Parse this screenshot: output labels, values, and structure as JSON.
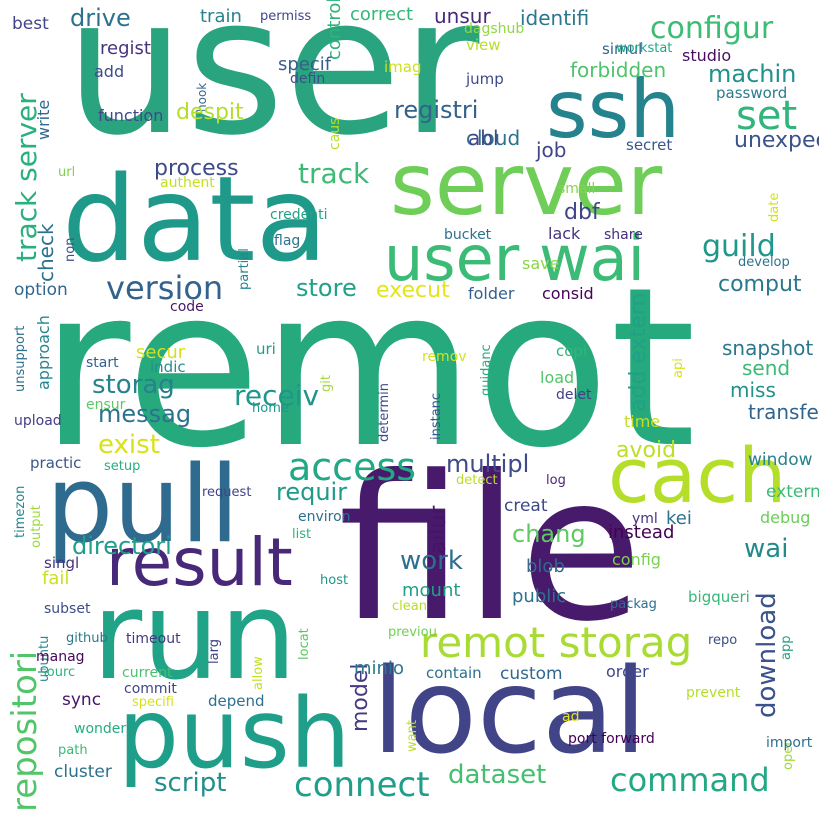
{
  "words": [
    {
      "text": "user",
      "color": "#2aa47f"
    },
    {
      "text": "remot",
      "color": "#26a97d"
    },
    {
      "text": "file",
      "color": "#481a6c"
    },
    {
      "text": "data",
      "color": "#1f9a8a"
    },
    {
      "text": "server",
      "color": "#6ece58"
    },
    {
      "text": "ssh",
      "color": "#25838e"
    },
    {
      "text": "pull",
      "color": "#2f6b8e"
    },
    {
      "text": "run",
      "color": "#20a386"
    },
    {
      "text": "local",
      "color": "#414487"
    },
    {
      "text": "push",
      "color": "#1f9e89"
    },
    {
      "text": "cach",
      "color": "#b5de2b"
    },
    {
      "text": "result",
      "color": "#482878"
    },
    {
      "text": "user wai",
      "color": "#3bbb75"
    },
    {
      "text": "remot storag",
      "color": "#a8db34"
    },
    {
      "text": "repositori",
      "color": "#52c569"
    },
    {
      "text": "access",
      "color": "#22a884"
    },
    {
      "text": "configur",
      "color": "#3dbc74"
    },
    {
      "text": "set",
      "color": "#31b57b"
    },
    {
      "text": "machin",
      "color": "#21918c"
    },
    {
      "text": "guild",
      "color": "#1f988b"
    },
    {
      "text": "version",
      "color": "#33638d"
    },
    {
      "text": "command",
      "color": "#22a884"
    },
    {
      "text": "connect",
      "color": "#1f9e89"
    },
    {
      "text": "directori",
      "color": "#1f9e89"
    },
    {
      "text": "multipl",
      "color": "#3e4a89"
    },
    {
      "text": "download",
      "color": "#3b528b"
    },
    {
      "text": "work",
      "color": "#2e6e8e"
    },
    {
      "text": "script",
      "color": "#21908d"
    },
    {
      "text": "storag",
      "color": "#26828e"
    },
    {
      "text": "track server",
      "color": "#2ab07f"
    },
    {
      "text": "track",
      "color": "#3bbb75"
    },
    {
      "text": "receiv",
      "color": "#1f968b"
    },
    {
      "text": "messag",
      "color": "#2c728e"
    },
    {
      "text": "dataset",
      "color": "#44bf70"
    },
    {
      "text": "exist",
      "color": "#d8e219"
    },
    {
      "text": "store",
      "color": "#1fa287"
    },
    {
      "text": "requir",
      "color": "#1f9a8a"
    },
    {
      "text": "chang",
      "color": "#5ec962"
    },
    {
      "text": "wai",
      "color": "#23898e"
    },
    {
      "text": "registri",
      "color": "#33638d"
    },
    {
      "text": "drive",
      "color": "#2c728e"
    },
    {
      "text": "process",
      "color": "#3e4a89"
    },
    {
      "text": "unexpect",
      "color": "#3b528b"
    },
    {
      "text": "check",
      "color": "#2c728e"
    },
    {
      "text": "comput",
      "color": "#29798e"
    },
    {
      "text": "execut",
      "color": "#e5e419"
    },
    {
      "text": "despit",
      "color": "#b5de2b"
    },
    {
      "text": "control",
      "color": "#2fb47c"
    },
    {
      "text": "forbidden",
      "color": "#4ec36b"
    },
    {
      "text": "job",
      "color": "#414487"
    },
    {
      "text": "unsur",
      "color": "#482878"
    },
    {
      "text": "identifi",
      "color": "#2a788e"
    },
    {
      "text": "correct",
      "color": "#35b779"
    },
    {
      "text": "train",
      "color": "#25848e"
    },
    {
      "text": "hook",
      "color": "#31688e"
    },
    {
      "text": "best",
      "color": "#404688"
    },
    {
      "text": "regist",
      "color": "#46327e"
    },
    {
      "text": "add",
      "color": "#3d4e8a"
    },
    {
      "text": "write",
      "color": "#306a8e"
    },
    {
      "text": "function",
      "color": "#3e4989"
    },
    {
      "text": "caus",
      "color": "#bddf26"
    },
    {
      "text": "specif",
      "color": "#355f8d"
    },
    {
      "text": "defin",
      "color": "#3c4f8a"
    },
    {
      "text": "abl",
      "color": "#3f4889"
    },
    {
      "text": "cloud",
      "color": "#2d708e"
    },
    {
      "text": "imag",
      "color": "#d0e11c"
    },
    {
      "text": "jump",
      "color": "#3e4c8a"
    },
    {
      "text": "view",
      "color": "#b8de29"
    },
    {
      "text": "dagshub",
      "color": "#90d743"
    },
    {
      "text": "permiss",
      "color": "#3f4788"
    },
    {
      "text": "workstat",
      "color": "#22a785"
    },
    {
      "text": "simul",
      "color": "#31668e"
    },
    {
      "text": "studio",
      "color": "#471063"
    },
    {
      "text": "password",
      "color": "#287d8e"
    },
    {
      "text": "secret",
      "color": "#39558c"
    },
    {
      "text": "authent",
      "color": "#c5e021"
    },
    {
      "text": "url",
      "color": "#7ad151"
    },
    {
      "text": "dbf",
      "color": "#414487"
    },
    {
      "text": "small",
      "color": "#84d44b"
    },
    {
      "text": "date",
      "color": "#d2e21b"
    },
    {
      "text": "share",
      "color": "#472d7b"
    },
    {
      "text": "send",
      "color": "#3aba76"
    },
    {
      "text": "credenti",
      "color": "#20a386"
    },
    {
      "text": "bucket",
      "color": "#2d708e"
    },
    {
      "text": "non",
      "color": "#3b528b"
    },
    {
      "text": "lack",
      "color": "#46337e"
    },
    {
      "text": "partial",
      "color": "#24878e"
    },
    {
      "text": "flag",
      "color": "#2c728e"
    },
    {
      "text": "save",
      "color": "#8bd646"
    },
    {
      "text": "develop",
      "color": "#2b748e"
    },
    {
      "text": "option",
      "color": "#31678e"
    },
    {
      "text": "folder",
      "color": "#34618d"
    },
    {
      "text": "consid",
      "color": "#450457"
    },
    {
      "text": "add extern",
      "color": "#1fa187"
    },
    {
      "text": "code",
      "color": "#481769"
    },
    {
      "text": "secur",
      "color": "#d5e21a"
    },
    {
      "text": "git",
      "color": "#a2da37"
    },
    {
      "text": "guidanc",
      "color": "#26ad81"
    },
    {
      "text": "snapshot",
      "color": "#2a778e"
    },
    {
      "text": "uri",
      "color": "#1e9c89"
    },
    {
      "text": "api",
      "color": "#d8e219"
    },
    {
      "text": "copi",
      "color": "#31b57b"
    },
    {
      "text": "remov",
      "color": "#d2e21b"
    },
    {
      "text": "start",
      "color": "#355f8d"
    },
    {
      "text": "unsupport",
      "color": "#2c718e"
    },
    {
      "text": "instanc",
      "color": "#38598c"
    },
    {
      "text": "approach",
      "color": "#25858e"
    },
    {
      "text": "indic",
      "color": "#21908d"
    },
    {
      "text": "load",
      "color": "#52c569"
    },
    {
      "text": "delet",
      "color": "#423f85"
    },
    {
      "text": "miss",
      "color": "#21918c"
    },
    {
      "text": "transfer",
      "color": "#32658e"
    },
    {
      "text": "ensur",
      "color": "#5ac864"
    },
    {
      "text": "home",
      "color": "#1f958b"
    },
    {
      "text": "determin",
      "color": "#3e4c8a"
    },
    {
      "text": "upload",
      "color": "#433d84"
    },
    {
      "text": "time",
      "color": "#c2df23"
    },
    {
      "text": "avoid",
      "color": "#bddf26"
    },
    {
      "text": "window",
      "color": "#26828e"
    },
    {
      "text": "timezon",
      "color": "#24868e"
    },
    {
      "text": "output",
      "color": "#9bd93c"
    },
    {
      "text": "practic",
      "color": "#39568c"
    },
    {
      "text": "setup",
      "color": "#28ae80"
    },
    {
      "text": "request",
      "color": "#414487"
    },
    {
      "text": "detect",
      "color": "#bade28"
    },
    {
      "text": "log",
      "color": "#482576"
    },
    {
      "text": "extern",
      "color": "#3aba76"
    },
    {
      "text": "creat",
      "color": "#3f4889"
    },
    {
      "text": "failur",
      "color": "#471365"
    },
    {
      "text": "environ",
      "color": "#2d708e"
    },
    {
      "text": "kei",
      "color": "#2d718e"
    },
    {
      "text": "yml",
      "color": "#46337e"
    },
    {
      "text": "debug",
      "color": "#6ccd5a"
    },
    {
      "text": "list",
      "color": "#2eb37c"
    },
    {
      "text": "instead",
      "color": "#440154"
    },
    {
      "text": "singl",
      "color": "#46327e"
    },
    {
      "text": "fail",
      "color": "#cae11f"
    },
    {
      "text": "blob",
      "color": "#306a8e"
    },
    {
      "text": "config",
      "color": "#7ad151"
    },
    {
      "text": "mount",
      "color": "#1fa088"
    },
    {
      "text": "host",
      "color": "#1f958b"
    },
    {
      "text": "public",
      "color": "#2c718e"
    },
    {
      "text": "subset",
      "color": "#3d4d8a"
    },
    {
      "text": "clean",
      "color": "#b8de29"
    },
    {
      "text": "packag",
      "color": "#2f6c8e"
    },
    {
      "text": "bigqueri",
      "color": "#35b779"
    },
    {
      "text": "app",
      "color": "#2aa07f"
    },
    {
      "text": "github",
      "color": "#2a788e"
    },
    {
      "text": "timeout",
      "color": "#453882"
    },
    {
      "text": "previou",
      "color": "#71cf57"
    },
    {
      "text": "larg",
      "color": "#404588"
    },
    {
      "text": "allow",
      "color": "#c2df23"
    },
    {
      "text": "locat",
      "color": "#5cc863"
    },
    {
      "text": "repo",
      "color": "#3e4c8a"
    },
    {
      "text": "manag",
      "color": "#46085c"
    },
    {
      "text": "ubuntu",
      "color": "#25848e"
    },
    {
      "text": "sourc",
      "color": "#2db27d"
    },
    {
      "text": "current",
      "color": "#48c16e"
    },
    {
      "text": "commit",
      "color": "#404588"
    },
    {
      "text": "minio",
      "color": "#2a788e"
    },
    {
      "text": "contain",
      "color": "#2c728e"
    },
    {
      "text": "model",
      "color": "#443983"
    },
    {
      "text": "custom",
      "color": "#31678e"
    },
    {
      "text": "order",
      "color": "#3e4989"
    },
    {
      "text": "sync",
      "color": "#481467"
    },
    {
      "text": "specifi",
      "color": "#d5e21a"
    },
    {
      "text": "depend",
      "color": "#2e6f8e"
    },
    {
      "text": "prevent",
      "color": "#b5de2b"
    },
    {
      "text": "oper",
      "color": "#a0da39"
    },
    {
      "text": "wonder",
      "color": "#26ad81"
    },
    {
      "text": "want",
      "color": "#bddf26"
    },
    {
      "text": "ad",
      "color": "#e5e419"
    },
    {
      "text": "path",
      "color": "#3aba76"
    },
    {
      "text": "port forward",
      "color": "#440154"
    },
    {
      "text": "import",
      "color": "#2d708e"
    },
    {
      "text": "cluster",
      "color": "#2d708e"
    }
  ]
}
